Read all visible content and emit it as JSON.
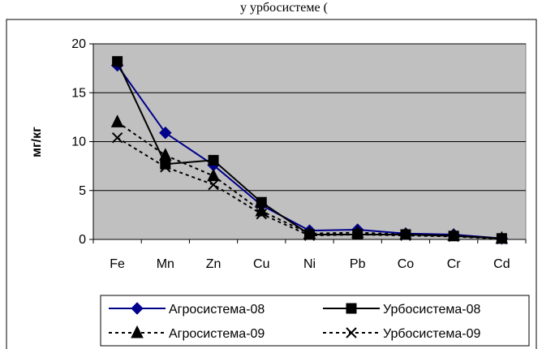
{
  "header_fragment": "у урбосистеме (",
  "chart_data": {
    "type": "line",
    "title": "",
    "xlabel": "",
    "ylabel": "мг/кг",
    "ylim": [
      0,
      20
    ],
    "yticks": [
      "0",
      "5",
      "10",
      "15",
      "20"
    ],
    "categories": [
      "Fe",
      "Mn",
      "Zn",
      "Cu",
      "Ni",
      "Pb",
      "Co",
      "Cr",
      "Cd"
    ],
    "grid": "horizontal",
    "plot_background": "#c0c0c0",
    "legend_position": "bottom",
    "series": [
      {
        "name": "Агросистема-08",
        "color": "#00008b",
        "line": "solid",
        "marker": "diamond",
        "values": [
          17.8,
          10.9,
          7.6,
          3.5,
          0.9,
          1.0,
          0.6,
          0.5,
          0.1
        ]
      },
      {
        "name": "Урбосистема-08",
        "color": "#000000",
        "line": "solid",
        "marker": "square",
        "values": [
          18.2,
          7.7,
          8.1,
          3.8,
          0.5,
          0.5,
          0.5,
          0.35,
          0.1
        ]
      },
      {
        "name": "Агросистема-09",
        "color": "#000000",
        "line": "dashed",
        "marker": "triangle",
        "values": [
          12.0,
          8.6,
          6.5,
          2.9,
          0.6,
          0.7,
          0.5,
          0.4,
          0.1
        ]
      },
      {
        "name": "Урбосистема-09",
        "color": "#000000",
        "line": "dashed",
        "marker": "x",
        "values": [
          10.4,
          7.4,
          5.6,
          2.6,
          0.4,
          0.5,
          0.4,
          0.3,
          0.05
        ]
      }
    ]
  }
}
